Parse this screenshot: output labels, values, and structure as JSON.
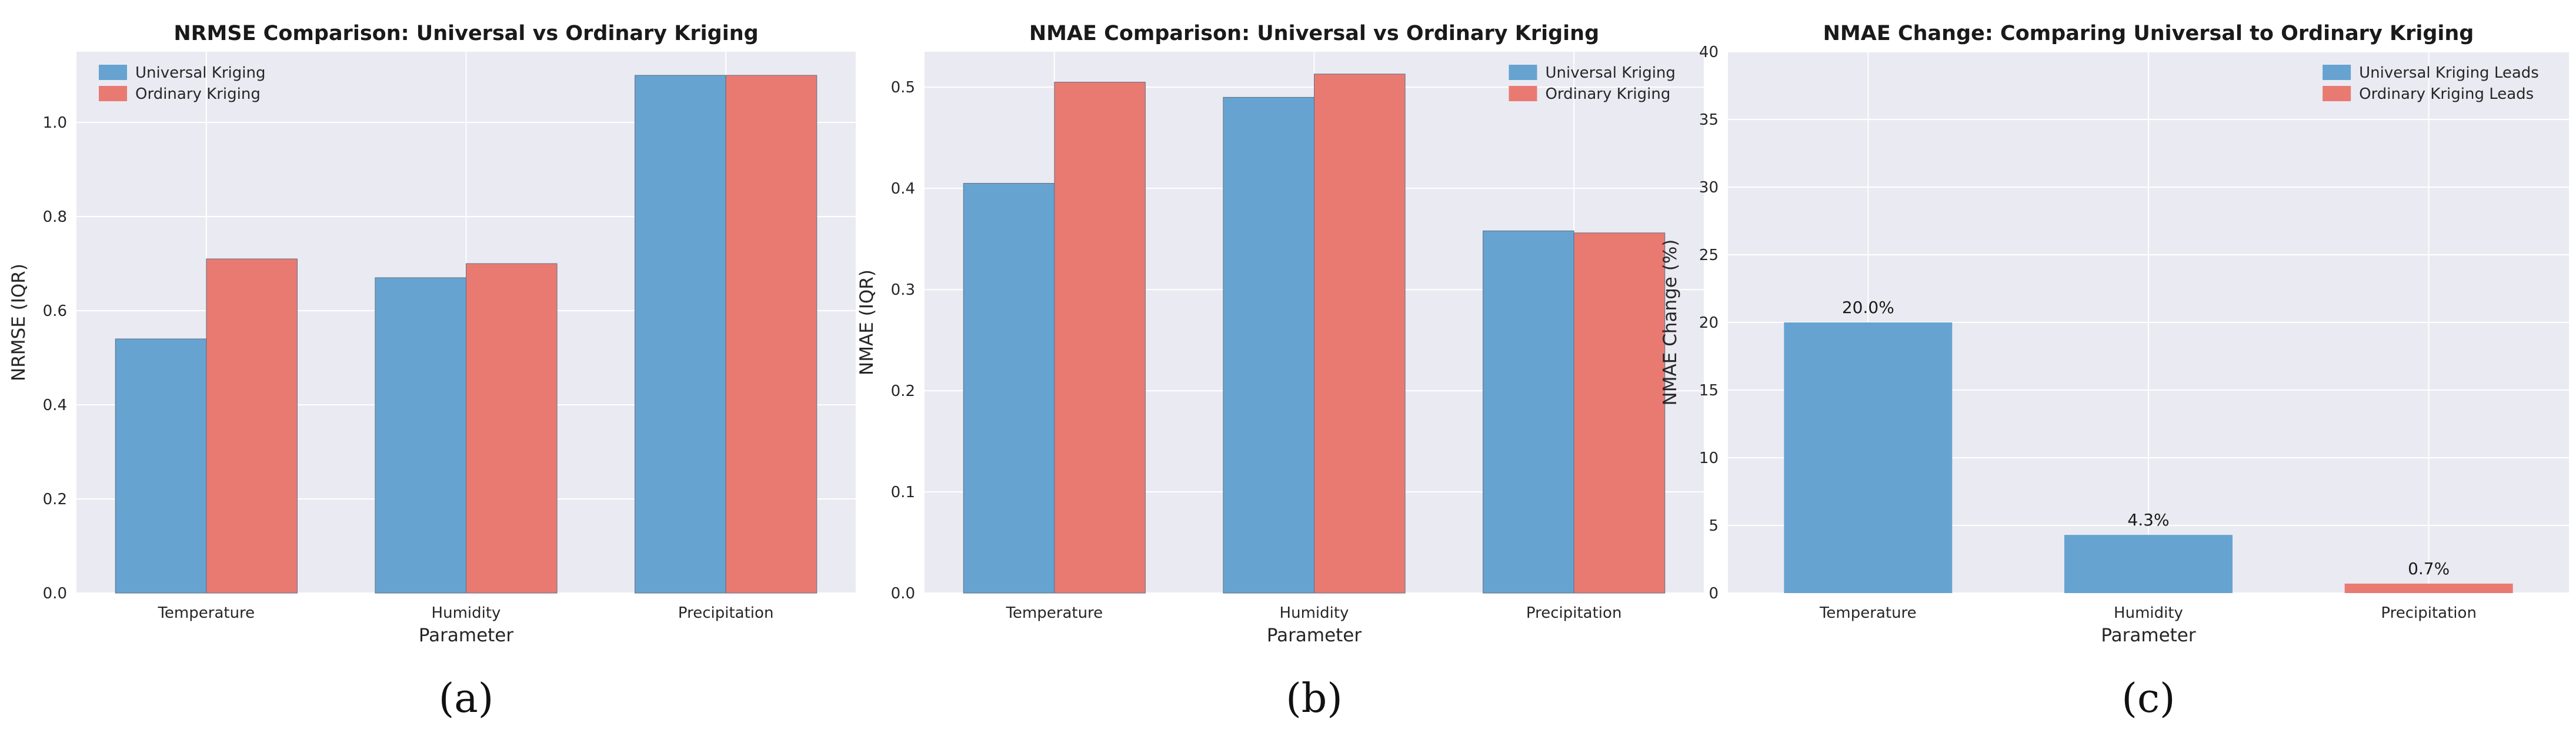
{
  "chart_data": [
    {
      "type": "bar",
      "panel_label": "(a)",
      "title": "NRMSE Comparison: Universal vs Ordinary Kriging",
      "xlabel": "Parameter",
      "ylabel": "NRMSE (IQR)",
      "categories": [
        "Temperature",
        "Humidity",
        "Precipitation"
      ],
      "ylim": [
        0,
        1.15
      ],
      "yticks": [
        0.0,
        0.2,
        0.4,
        0.6,
        0.8,
        1.0
      ],
      "tick_decimals": 1,
      "grid": true,
      "legend_position": "top-left",
      "series": [
        {
          "name": "Universal Kriging",
          "color": "#66A3D1",
          "values": [
            0.54,
            0.67,
            1.1
          ]
        },
        {
          "name": "Ordinary Kriging",
          "color": "#E97A72",
          "values": [
            0.71,
            0.7,
            1.1
          ]
        }
      ]
    },
    {
      "type": "bar",
      "panel_label": "(b)",
      "title": "NMAE Comparison: Universal vs Ordinary Kriging",
      "xlabel": "Parameter",
      "ylabel": "NMAE (IQR)",
      "categories": [
        "Temperature",
        "Humidity",
        "Precipitation"
      ],
      "ylim": [
        0,
        0.535
      ],
      "yticks": [
        0.0,
        0.1,
        0.2,
        0.3,
        0.4,
        0.5
      ],
      "tick_decimals": 1,
      "grid": true,
      "legend_position": "top-right",
      "series": [
        {
          "name": "Universal Kriging",
          "color": "#66A3D1",
          "values": [
            0.405,
            0.49,
            0.358
          ]
        },
        {
          "name": "Ordinary Kriging",
          "color": "#E97A72",
          "values": [
            0.505,
            0.513,
            0.356
          ]
        }
      ]
    },
    {
      "type": "bar",
      "panel_label": "(c)",
      "title": "NMAE Change: Comparing Universal to Ordinary Kriging",
      "xlabel": "Parameter",
      "ylabel": "NMAE Change (%)",
      "categories": [
        "Temperature",
        "Humidity",
        "Precipitation"
      ],
      "ylim": [
        0,
        40
      ],
      "yticks": [
        0,
        5,
        10,
        15,
        20,
        25,
        30,
        35,
        40
      ],
      "tick_decimals": 0,
      "grid": true,
      "legend_position": "top-right",
      "values": [
        20.0,
        4.3,
        0.7
      ],
      "value_labels": [
        "20.0%",
        "4.3%",
        "0.7%"
      ],
      "bar_leader": [
        "Universal Kriging Leads",
        "Universal Kriging Leads",
        "Ordinary Kriging Leads"
      ],
      "legend": [
        {
          "name": "Universal Kriging Leads",
          "color": "#66A3D1"
        },
        {
          "name": "Ordinary Kriging Leads",
          "color": "#E97A72"
        }
      ]
    }
  ]
}
